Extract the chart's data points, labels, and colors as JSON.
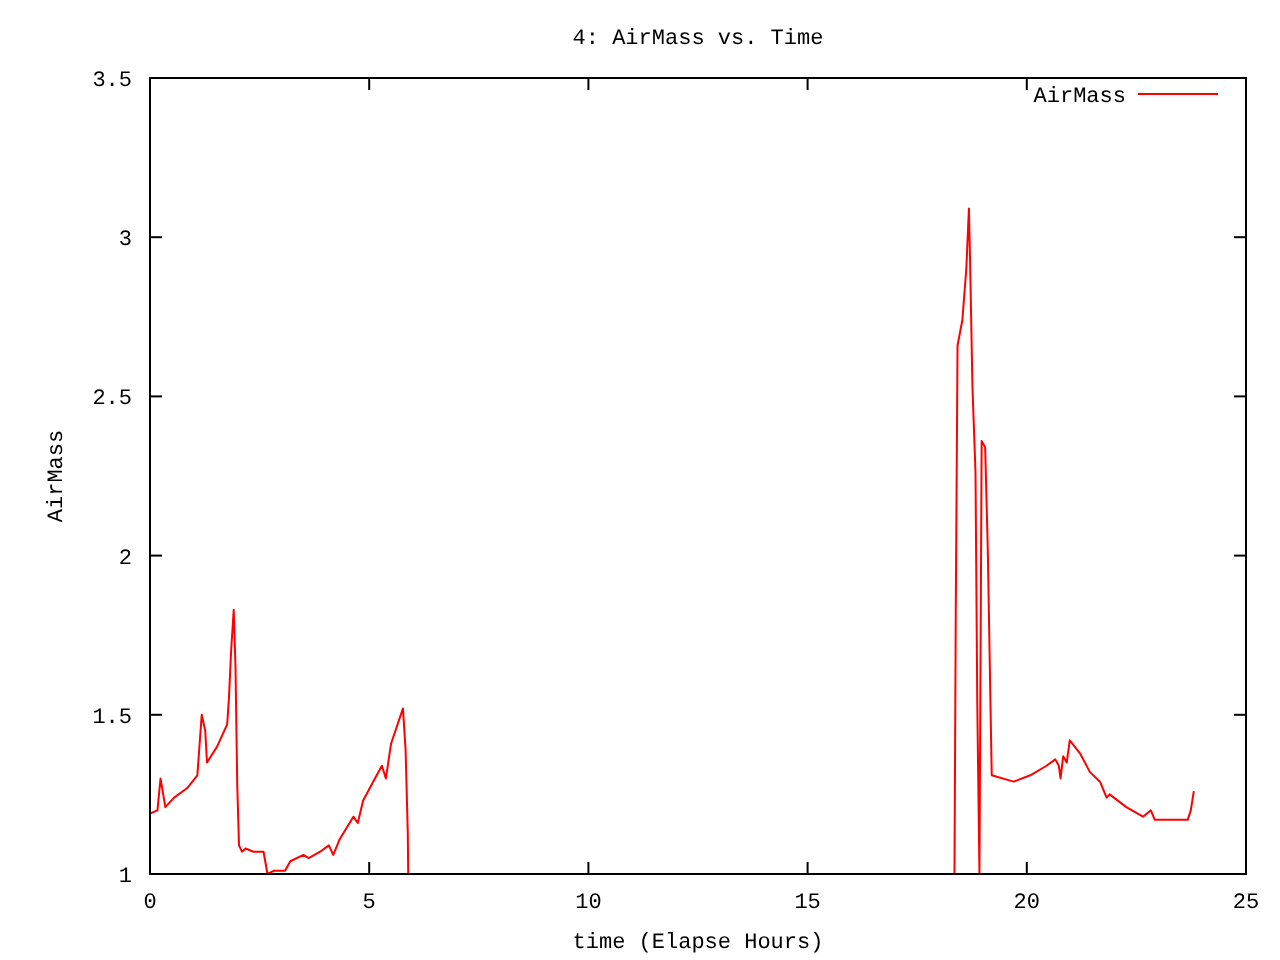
{
  "chart_data": {
    "type": "line",
    "title": "4: AirMass vs. Time",
    "xlabel": "time (Elapse Hours)",
    "ylabel": "AirMass",
    "xlim": [
      0,
      25
    ],
    "xticks": [
      0,
      5,
      10,
      15,
      20,
      25
    ],
    "ylim": [
      1,
      3.5
    ],
    "yticks": [
      1,
      1.5,
      2,
      2.5,
      3,
      3.5
    ],
    "legend": "top right",
    "grid": false,
    "marker": "none",
    "x": [
      0,
      0.17,
      0.24,
      0.35,
      0.55,
      0.85,
      1.08,
      1.18,
      1.26,
      1.3,
      1.53,
      1.76,
      1.8,
      1.85,
      1.91,
      1.95,
      1.99,
      2.03,
      2.1,
      2.18,
      2.36,
      2.59,
      2.68,
      2.82,
      3.08,
      3.2,
      3.5,
      3.62,
      3.88,
      4.08,
      4.18,
      4.33,
      4.64,
      4.74,
      4.86,
      5.09,
      5.29,
      5.38,
      5.5,
      5.77,
      5.83,
      5.88,
      5.89,
      12,
      18.35,
      18.38,
      18.42,
      18.53,
      18.62,
      18.68,
      18.71,
      18.76,
      18.83,
      18.87,
      18.92,
      18.97,
      19.05,
      19.11,
      19.2,
      19.7,
      20.08,
      20.45,
      20.65,
      20.73,
      20.77,
      20.83,
      20.91,
      20.98,
      21.21,
      21.44,
      21.67,
      21.82,
      21.89,
      22.27,
      22.65,
      22.83,
      22.92,
      23.26,
      23.67,
      23.74,
      23.81
    ],
    "series": [
      {
        "name": "AirMass",
        "color": "#ff0000",
        "values": [
          1.19,
          1.2,
          1.3,
          1.21,
          1.24,
          1.27,
          1.31,
          1.5,
          1.45,
          1.35,
          1.4,
          1.47,
          1.55,
          1.7,
          1.83,
          1.65,
          1.28,
          1.09,
          1.07,
          1.08,
          1.07,
          1.07,
          1.0,
          1.01,
          1.01,
          1.04,
          1.06,
          1.05,
          1.07,
          1.09,
          1.06,
          1.11,
          1.18,
          1.16,
          1.23,
          1.29,
          1.34,
          1.3,
          1.41,
          1.52,
          1.39,
          1.13,
          1.0,
          null,
          1.0,
          1.83,
          2.66,
          2.74,
          2.9,
          3.09,
          2.9,
          2.53,
          2.26,
          1.54,
          1.0,
          2.36,
          2.34,
          2.02,
          1.31,
          1.29,
          1.31,
          1.34,
          1.36,
          1.34,
          1.3,
          1.37,
          1.35,
          1.42,
          1.38,
          1.32,
          1.29,
          1.24,
          1.25,
          1.21,
          1.18,
          1.2,
          1.17,
          1.17,
          1.17,
          1.2,
          1.26
        ]
      }
    ]
  }
}
